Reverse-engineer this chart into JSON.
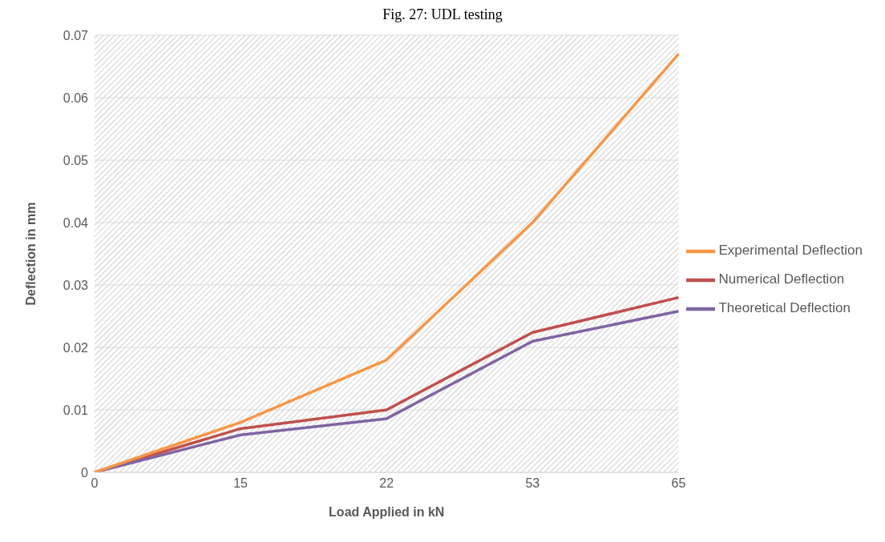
{
  "chart_data": {
    "type": "line",
    "title": "Fig. 27: UDL testing",
    "xlabel": "Load Applied in kN",
    "ylabel": "Deflection in mm",
    "categories": [
      "0",
      "15",
      "22",
      "53",
      "65"
    ],
    "series": [
      {
        "name": "Numerical Deflection",
        "color": "#c0504d",
        "values": [
          0,
          0.007,
          0.01,
          0.0224,
          0.028
        ]
      },
      {
        "name": "Theoretical Deflection",
        "color": "#8064a2",
        "values": [
          0,
          0.006,
          0.0086,
          0.021,
          0.0258
        ]
      },
      {
        "name": "Experimental Deflection",
        "color": "#f79646",
        "values": [
          0,
          0.008,
          0.018,
          0.04,
          0.067
        ]
      }
    ],
    "ylim": [
      0,
      0.07
    ],
    "yticks": [
      0,
      0.01,
      0.02,
      0.03,
      0.04,
      0.05,
      0.06,
      0.07
    ],
    "grid": "y",
    "legend": "right",
    "marker": "none",
    "line_style": "solid"
  }
}
